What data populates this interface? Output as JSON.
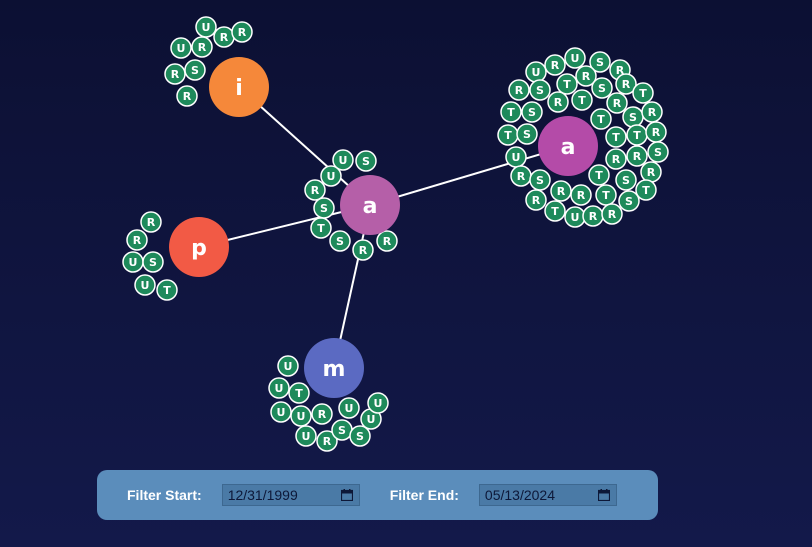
{
  "graph": {
    "edge_color": "#ffffff",
    "leaf_color": "#1e8a5b",
    "nodes": [
      {
        "id": "center",
        "label": "a",
        "color": "#b55fa8"
      },
      {
        "id": "i",
        "label": "i",
        "color": "#f5883a"
      },
      {
        "id": "p",
        "label": "p",
        "color": "#f25a45"
      },
      {
        "id": "m",
        "label": "m",
        "color": "#5b6ac2"
      },
      {
        "id": "a2",
        "label": "a",
        "color": "#b44ba8"
      }
    ],
    "edges": [
      [
        "center",
        "i"
      ],
      [
        "center",
        "p"
      ],
      [
        "center",
        "m"
      ],
      [
        "center",
        "a2"
      ]
    ],
    "leaf_groups": [
      {
        "node": "i",
        "labels": [
          "U",
          "R",
          "R",
          "U",
          "R",
          "R",
          "S",
          "R"
        ]
      },
      {
        "node": "p",
        "labels": [
          "R",
          "R",
          "U",
          "S",
          "U",
          "T"
        ]
      },
      {
        "node": "center",
        "labels": [
          "U",
          "S",
          "U",
          "R",
          "S",
          "T",
          "S",
          "R",
          "R"
        ]
      },
      {
        "node": "m",
        "labels": [
          "U",
          "U",
          "T",
          "U",
          "U",
          "R",
          "U",
          "R",
          "S",
          "S",
          "U",
          "U",
          "U"
        ]
      },
      {
        "node": "a2",
        "labels": [
          "U",
          "R",
          "U",
          "S",
          "R",
          "R",
          "S",
          "T",
          "R",
          "S",
          "R",
          "T",
          "T",
          "S",
          "R",
          "T",
          "R",
          "T",
          "S",
          "R",
          "T",
          "S",
          "T",
          "T",
          "R",
          "U",
          "R",
          "R",
          "S",
          "R",
          "S",
          "T",
          "S",
          "R",
          "R",
          "T",
          "R",
          "R",
          "T",
          "S",
          "T",
          "U",
          "R",
          "R",
          "S",
          "R",
          "S"
        ]
      }
    ]
  },
  "filter": {
    "start_label": "Filter Start:",
    "start_value": "12/31/1999",
    "end_label": "Filter End:",
    "end_value": "05/13/2024"
  }
}
